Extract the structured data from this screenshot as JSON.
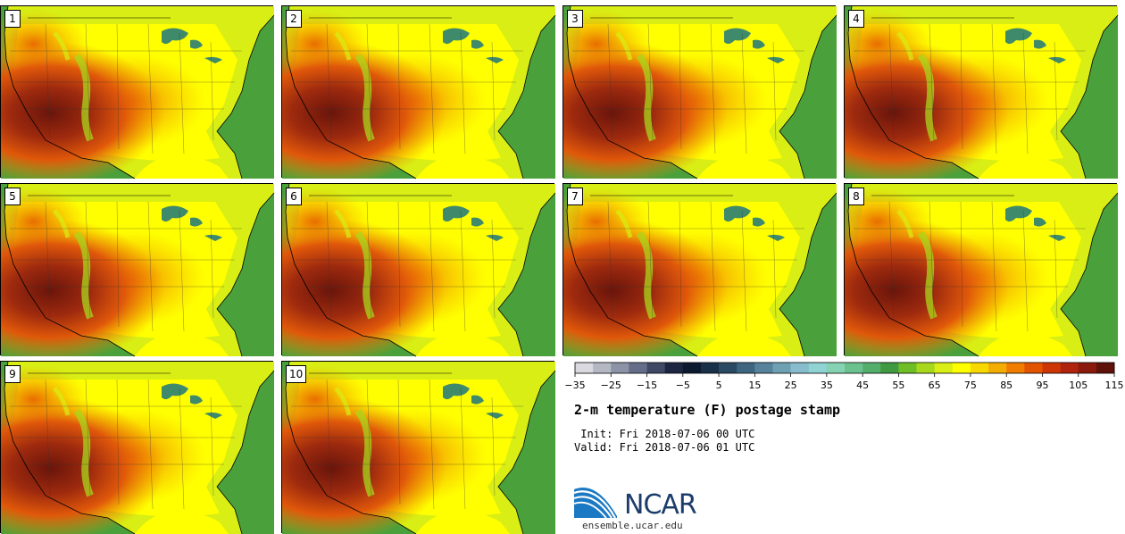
{
  "panels": [
    {
      "label": "1"
    },
    {
      "label": "2"
    },
    {
      "label": "3"
    },
    {
      "label": "4"
    },
    {
      "label": "5"
    },
    {
      "label": "6"
    },
    {
      "label": "7"
    },
    {
      "label": "8"
    },
    {
      "label": "9"
    },
    {
      "label": "10"
    }
  ],
  "colorbar": {
    "colors": [
      "#d9d9df",
      "#b3b8c3",
      "#8c93a6",
      "#656e88",
      "#3f4966",
      "#1d2640",
      "#0c1a30",
      "#183048",
      "#2a4a64",
      "#3e6680",
      "#56829b",
      "#6ea0b4",
      "#86bccb",
      "#8fd3d3",
      "#86d3b3",
      "#6cc28f",
      "#52ae6a",
      "#3f9a42",
      "#6fbe26",
      "#a8d81c",
      "#d8ee14",
      "#ffff00",
      "#f7d800",
      "#f3ad00",
      "#f07d00",
      "#e35400",
      "#cd3504",
      "#b0230c",
      "#8c1a0c",
      "#5e120a"
    ],
    "ticks": [
      "−35",
      "−25",
      "−15",
      "−5",
      "5",
      "15",
      "25",
      "35",
      "45",
      "55",
      "65",
      "75",
      "85",
      "95",
      "105",
      "115"
    ]
  },
  "title": "2-m temperature (F) postage stamp",
  "init_line": " Init: Fri 2018-07-06 00 UTC",
  "valid_line": "Valid: Fri 2018-07-06 01 UTC",
  "logo_text": "NCAR",
  "site": "ensemble.ucar.edu",
  "map_legend": {
    "ocean_color": "#4aa03a",
    "warm_land_color": "#ffff00",
    "hot_color": "#f08a00",
    "very_hot_color": "#8c1a0c"
  }
}
